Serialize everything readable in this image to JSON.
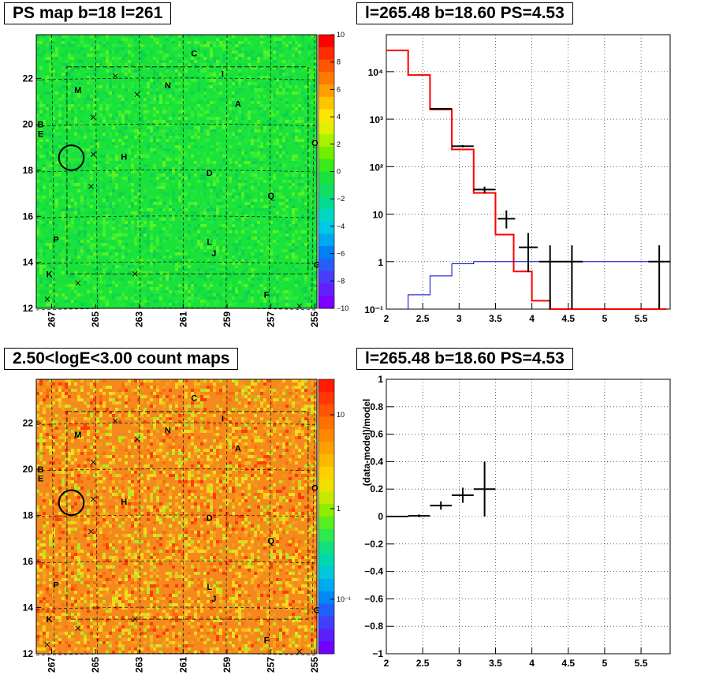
{
  "titles": {
    "map_top": "PS map b=18 l=261",
    "spec_top": "l=265.48 b=18.60 PS=4.53",
    "map_bottom": "2.50<logE<3.00 count maps",
    "spec_bottom": "l=265.48 b=18.60 PS=4.53"
  },
  "map": {
    "x_ticks": [
      "267",
      "265",
      "263",
      "261",
      "259",
      "257",
      "255"
    ],
    "y_ticks": [
      "22",
      "20",
      "18",
      "16",
      "14",
      "12"
    ],
    "xlim": [
      267.7,
      254.9
    ],
    "ylim": [
      12,
      23.9
    ],
    "sources": [
      {
        "label": "C",
        "l": 260.5,
        "b": 23.1
      },
      {
        "label": "I",
        "l": 259.2,
        "b": 22.2
      },
      {
        "label": "N",
        "l": 261.7,
        "b": 21.7
      },
      {
        "label": "M",
        "l": 265.8,
        "b": 21.5
      },
      {
        "label": "A",
        "l": 258.5,
        "b": 20.9
      },
      {
        "label": "B",
        "l": 267.5,
        "b": 20.0
      },
      {
        "label": "E",
        "l": 267.5,
        "b": 19.6
      },
      {
        "label": "O",
        "l": 255.0,
        "b": 19.2
      },
      {
        "label": "H",
        "l": 263.7,
        "b": 18.6
      },
      {
        "label": "D",
        "l": 259.8,
        "b": 17.9
      },
      {
        "label": "Q",
        "l": 257.0,
        "b": 16.9
      },
      {
        "label": "P",
        "l": 266.8,
        "b": 15.0
      },
      {
        "label": "L",
        "l": 259.8,
        "b": 14.9
      },
      {
        "label": "J",
        "l": 259.6,
        "b": 14.4
      },
      {
        "label": "G",
        "l": 254.9,
        "b": 13.9
      },
      {
        "label": "K",
        "l": 267.1,
        "b": 13.5
      },
      {
        "label": "F",
        "l": 257.2,
        "b": 12.6
      }
    ],
    "crosses": [
      {
        "l": 264.1,
        "b": 22.1
      },
      {
        "l": 263.1,
        "b": 21.3
      },
      {
        "l": 265.1,
        "b": 20.3
      },
      {
        "l": 265.1,
        "b": 18.7
      },
      {
        "l": 265.2,
        "b": 17.3
      },
      {
        "l": 265.8,
        "b": 13.1
      },
      {
        "l": 263.2,
        "b": 13.5
      },
      {
        "l": 267.2,
        "b": 12.4
      },
      {
        "l": 255.7,
        "b": 12.1
      }
    ],
    "circle": {
      "l": 266.1,
      "b": 18.55,
      "r_deg": 0.45
    }
  },
  "colorbar_top": {
    "ticks": [
      "10",
      "8",
      "6",
      "4",
      "2",
      "0",
      "−2",
      "−4",
      "−6",
      "−8",
      "−10"
    ]
  },
  "colorbar_bottom": {
    "ticks": [
      "10",
      "1",
      "10⁻¹"
    ]
  },
  "chart_data": [
    {
      "type": "line",
      "log_y": true,
      "xlim": [
        2,
        5.9
      ],
      "ylim": [
        0.1,
        60000
      ],
      "x_ticks": [
        "2",
        "2.5",
        "3",
        "3.5",
        "4",
        "4.5",
        "5",
        "5.5"
      ],
      "y_ticks": [
        "10⁴",
        "10³",
        "10²",
        "10",
        "1",
        "10⁻¹"
      ],
      "grid": true,
      "series": [
        {
          "style": "histogram",
          "color": "#ff0000",
          "bin_edges": [
            2.0,
            2.3,
            2.6,
            2.9,
            3.2,
            3.5,
            3.75,
            4.0,
            4.25,
            4.55,
            5.85
          ],
          "values": [
            28000,
            8500,
            1600,
            230,
            28,
            3.7,
            0.62,
            0.15,
            0.1,
            0.1
          ]
        },
        {
          "style": "histogram",
          "color": "#0000cc",
          "bin_edges": [
            2.3,
            2.6,
            2.9,
            3.2,
            3.5,
            3.75,
            4.0,
            4.25,
            4.55,
            5.85
          ],
          "values": [
            0.2,
            0.5,
            0.9,
            1.0,
            1.0,
            1.0,
            1.0,
            1.0,
            1.0
          ]
        },
        {
          "style": "points",
          "color": "#000000",
          "points": [
            {
              "x": 2.75,
              "xerr": 0.15,
              "y": 1650,
              "ylo": 1600,
              "yhi": 1700
            },
            {
              "x": 3.05,
              "xerr": 0.15,
              "y": 270,
              "ylo": 255,
              "yhi": 285
            },
            {
              "x": 3.35,
              "xerr": 0.15,
              "y": 33,
              "ylo": 28,
              "yhi": 38
            },
            {
              "x": 3.65,
              "xerr": 0.12,
              "y": 8,
              "ylo": 5,
              "yhi": 12
            },
            {
              "x": 3.95,
              "xerr": 0.13,
              "y": 2,
              "ylo": 0.6,
              "yhi": 4
            },
            {
              "x": 4.25,
              "xerr": 0.15,
              "y": 1,
              "ylo": 0.1,
              "yhi": 2.2
            },
            {
              "x": 4.55,
              "xerr": 0.15,
              "y": 1,
              "ylo": 0.1,
              "yhi": 2.2
            },
            {
              "x": 5.75,
              "xerr": 0.15,
              "y": 1,
              "ylo": 0.1,
              "yhi": 2.2
            }
          ]
        }
      ]
    },
    {
      "type": "scatter",
      "xlim": [
        2,
        5.9
      ],
      "ylim": [
        -1,
        1
      ],
      "ylabel": "(data-model)/model",
      "x_ticks": [
        "2",
        "2.5",
        "3",
        "3.5",
        "4",
        "4.5",
        "5",
        "5.5"
      ],
      "y_ticks": [
        "1",
        "0.8",
        "0.6",
        "0.4",
        "0.2",
        "0",
        "−0.2",
        "−0.4",
        "−0.6",
        "−0.8",
        "−1"
      ],
      "grid": true,
      "points": [
        {
          "x": 2.15,
          "xerr": 0.15,
          "y": 0.0,
          "ylo": -0.005,
          "yhi": 0.005
        },
        {
          "x": 2.45,
          "xerr": 0.15,
          "y": 0.005,
          "ylo": -0.005,
          "yhi": 0.015
        },
        {
          "x": 2.75,
          "xerr": 0.15,
          "y": 0.08,
          "ylo": 0.05,
          "yhi": 0.11
        },
        {
          "x": 3.05,
          "xerr": 0.15,
          "y": 0.155,
          "ylo": 0.1,
          "yhi": 0.21
        },
        {
          "x": 3.35,
          "xerr": 0.15,
          "y": 0.2,
          "ylo": 0.0,
          "yhi": 0.4
        }
      ]
    }
  ],
  "colors": {
    "map_pos_high": "#ff0000",
    "map_zero": "#19e33a",
    "map_neg": "#7a00ff",
    "spectrum_model": "#ff0000",
    "spectrum_background": "#0000cc",
    "data_points": "#000000"
  }
}
